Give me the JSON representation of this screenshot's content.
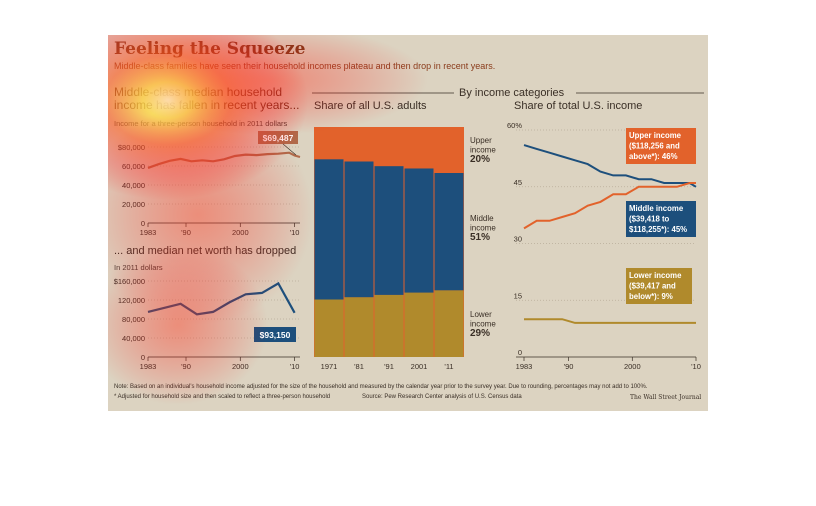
{
  "title": "Feeling the Squeeze",
  "subtitle": "Middle-class families have seen their household incomes plateau and then drop in recent years.",
  "section_label": "By income categories",
  "footnote": "Note: Based on an individual's household income adjusted for the size of the household and measured by the calendar year prior to the survey year. Due to rounding, percentages may not add to 100%.",
  "footnote2": "* Adjusted for household size and then scaled to reflect a three-person household",
  "source": "Source: Pew Research Center analysis of U.S. Census data",
  "credit": "The Wall Street Journal",
  "colors": {
    "upper": "#e2622b",
    "middle": "#1d4f7c",
    "lower": "#b08a2c",
    "income_line": "#b06a4a",
    "networth_line": "#1d4f7c"
  },
  "chart_data": [
    {
      "type": "line",
      "title": "Middle-class median household income has fallen in recent years...",
      "subtitle": "Income for a three-person household in 2011 dollars",
      "x": [
        1983,
        1985,
        1987,
        1989,
        1991,
        1993,
        1995,
        1997,
        1999,
        2001,
        2003,
        2005,
        2007,
        2009,
        2010,
        2011
      ],
      "series": [
        {
          "values": [
            58000,
            62000,
            65500,
            67500,
            65000,
            66000,
            65000,
            67000,
            70500,
            72000,
            71500,
            72500,
            73000,
            74000,
            71000,
            69487
          ]
        }
      ],
      "callout": "$69,487",
      "yticks": [
        "$80,000",
        "60,000",
        "40,000",
        "20,000",
        "0"
      ],
      "xticks": [
        "1983",
        "'90",
        "2000",
        "'10"
      ],
      "ylim": [
        0,
        80000
      ]
    },
    {
      "type": "line",
      "title": "... and median net worth has dropped",
      "subtitle": "In 2011 dollars",
      "x": [
        1983,
        1989,
        1992,
        1995,
        1998,
        2001,
        2004,
        2007,
        2010
      ],
      "series": [
        {
          "values": [
            95000,
            112000,
            90000,
            95000,
            115000,
            132000,
            135000,
            155000,
            93150
          ]
        }
      ],
      "callout": "$93,150",
      "yticks": [
        "$160,000",
        "120,000",
        "80,000",
        "40,000",
        "0"
      ],
      "xticks": [
        "1983",
        "'90",
        "2000",
        "'10"
      ],
      "ylim": [
        0,
        160000
      ]
    },
    {
      "type": "bar",
      "title": "Share of all U.S. adults",
      "categories": [
        "1971",
        "'81",
        "'91",
        "2001",
        "'11"
      ],
      "series": [
        {
          "name": "Lower income",
          "values": [
            25,
            26,
            27,
            28,
            29
          ]
        },
        {
          "name": "Middle income",
          "values": [
            61,
            59,
            56,
            54,
            51
          ]
        },
        {
          "name": "Upper income",
          "values": [
            14,
            15,
            17,
            18,
            20
          ]
        }
      ],
      "labels": {
        "upper": [
          "Upper",
          "income",
          "20%"
        ],
        "middle": [
          "Middle",
          "income",
          "51%"
        ],
        "lower": [
          "Lower",
          "income",
          "29%"
        ]
      },
      "ylim": [
        0,
        100
      ]
    },
    {
      "type": "line",
      "title": "Share of total U.S. income",
      "x": [
        1983,
        1985,
        1987,
        1989,
        1991,
        1993,
        1995,
        1997,
        1999,
        2001,
        2003,
        2005,
        2007,
        2009,
        2010
      ],
      "series": [
        {
          "name": "Middle",
          "values": [
            56,
            55,
            54,
            53,
            52,
            51,
            49,
            48,
            48,
            47,
            47,
            46,
            46,
            46,
            45
          ]
        },
        {
          "name": "Upper",
          "values": [
            34,
            36,
            36,
            37,
            38,
            40,
            41,
            43,
            43,
            45,
            45,
            45,
            45,
            46,
            46
          ]
        },
        {
          "name": "Lower",
          "values": [
            10,
            10,
            10,
            10,
            9,
            9,
            9,
            9,
            9,
            9,
            9,
            9,
            9,
            9,
            9
          ]
        }
      ],
      "callouts": {
        "upper": [
          "Upper income",
          "($118,256 and",
          "above*): 46%"
        ],
        "middle": [
          "Middle income",
          "($39,418 to",
          "$118,255*): 45%"
        ],
        "lower": [
          "Lower income",
          "($39,417 and",
          "below*): 9%"
        ]
      },
      "yticks": [
        "60%",
        "45",
        "30",
        "15",
        "0"
      ],
      "xticks": [
        "1983",
        "'90",
        "2000",
        "'10"
      ],
      "ylim": [
        0,
        60
      ]
    }
  ]
}
